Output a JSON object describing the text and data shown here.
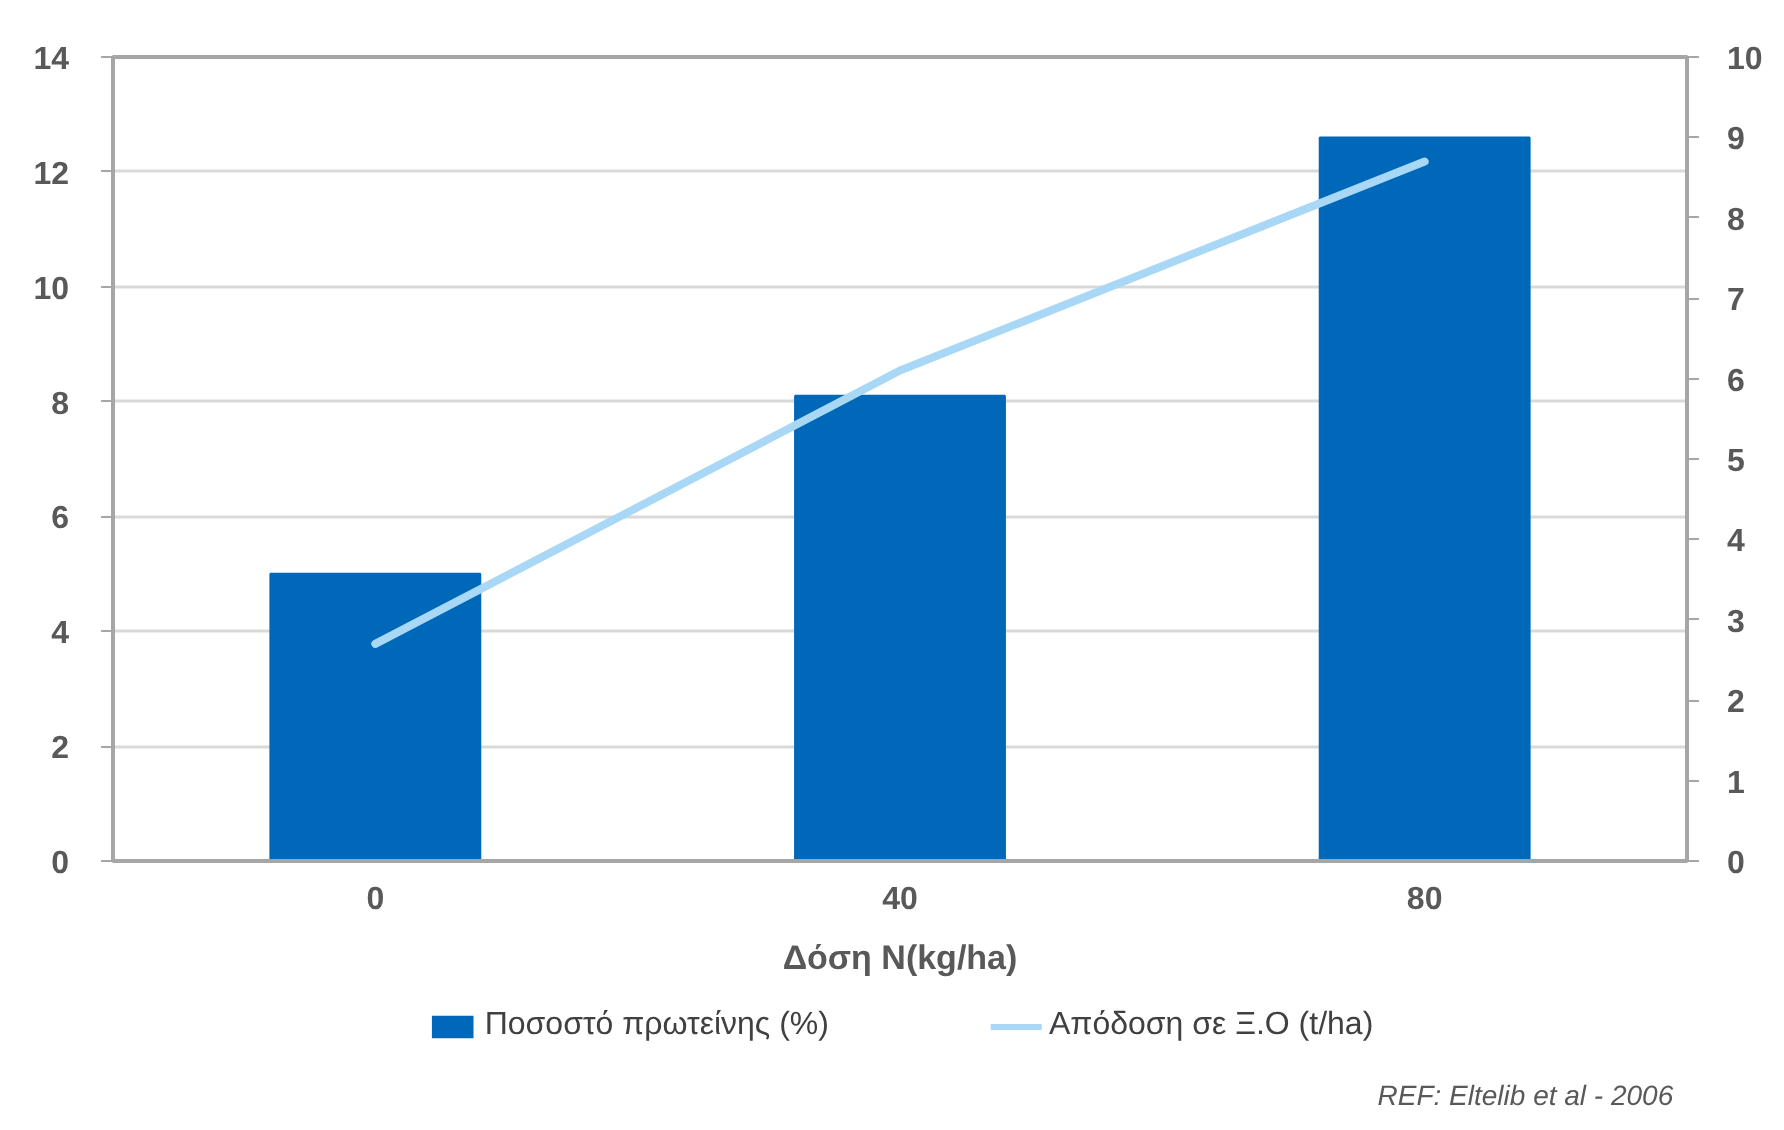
{
  "chart_data": {
    "type": "bar",
    "xlabel": "Δόση N(kg/ha)",
    "categories": [
      "0",
      "40",
      "80"
    ],
    "series": [
      {
        "name": "Ποσοστό πρωτείνης (%)",
        "color": "#0068b8",
        "values": [
          5.0,
          8.1,
          12.6
        ]
      },
      {
        "name": "Απόδοση σε Ξ.Ο (t/ha)",
        "type": "line",
        "axis": "y2",
        "color": "#a8d8f5",
        "values": [
          2.7,
          6.1,
          8.7
        ]
      }
    ],
    "ylim": [
      0,
      14
    ],
    "yticks": [
      0,
      2,
      4,
      6,
      8,
      10,
      12,
      14
    ],
    "y2lim": [
      0,
      10
    ],
    "y2ticks": [
      0,
      1,
      2,
      3,
      4,
      5,
      6,
      7,
      8,
      9,
      10
    ],
    "grid": "y",
    "legend": "bottom",
    "annotations": [
      "REF:  Eltelib et al - 2006"
    ]
  }
}
